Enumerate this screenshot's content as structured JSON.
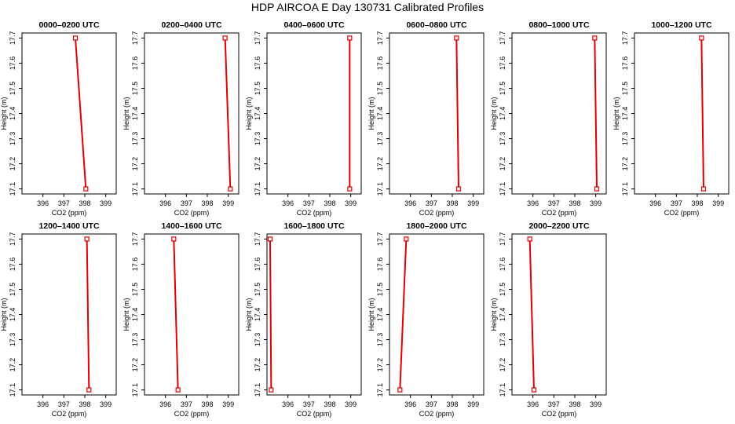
{
  "title": "HDP AIRCOA E  Day 130731  Calibrated Profiles",
  "colors": {
    "profile": "#e00000",
    "axis": "#000000",
    "background": "#ffffff"
  },
  "chart_data": [
    {
      "type": "line",
      "title": "0000–0200 UTC",
      "xlabel": "CO2 (ppm)",
      "ylabel": "Height (m)",
      "xlim": [
        395.0,
        399.5
      ],
      "ylim": [
        17.08,
        17.72
      ],
      "xticks": [
        396,
        397,
        398,
        399
      ],
      "yticks": [
        17.1,
        17.2,
        17.3,
        17.4,
        17.5,
        17.6,
        17.7
      ],
      "series": [
        {
          "points": [
            {
              "x": 398.05,
              "y": 17.1
            },
            {
              "x": 397.55,
              "y": 17.7
            }
          ]
        }
      ]
    },
    {
      "type": "line",
      "title": "0200–0400 UTC",
      "xlabel": "CO2 (ppm)",
      "ylabel": "Height (m)",
      "xlim": [
        395.0,
        399.5
      ],
      "ylim": [
        17.08,
        17.72
      ],
      "xticks": [
        396,
        397,
        398,
        399
      ],
      "yticks": [
        17.1,
        17.2,
        17.3,
        17.4,
        17.5,
        17.6,
        17.7
      ],
      "series": [
        {
          "points": [
            {
              "x": 399.1,
              "y": 17.1
            },
            {
              "x": 398.85,
              "y": 17.7
            }
          ]
        }
      ]
    },
    {
      "type": "line",
      "title": "0400–0600 UTC",
      "xlabel": "CO2 (ppm)",
      "ylabel": "Height (m)",
      "xlim": [
        395.0,
        399.5
      ],
      "ylim": [
        17.08,
        17.72
      ],
      "xticks": [
        396,
        397,
        398,
        399
      ],
      "yticks": [
        17.1,
        17.2,
        17.3,
        17.4,
        17.5,
        17.6,
        17.7
      ],
      "series": [
        {
          "points": [
            {
              "x": 398.95,
              "y": 17.1
            },
            {
              "x": 398.95,
              "y": 17.7
            }
          ]
        }
      ]
    },
    {
      "type": "line",
      "title": "0600–0800 UTC",
      "xlabel": "CO2 (ppm)",
      "ylabel": "Height (m)",
      "xlim": [
        395.0,
        399.5
      ],
      "ylim": [
        17.08,
        17.72
      ],
      "xticks": [
        396,
        397,
        398,
        399
      ],
      "yticks": [
        17.1,
        17.2,
        17.3,
        17.4,
        17.5,
        17.6,
        17.7
      ],
      "series": [
        {
          "points": [
            {
              "x": 398.3,
              "y": 17.1
            },
            {
              "x": 398.2,
              "y": 17.7
            }
          ]
        }
      ]
    },
    {
      "type": "line",
      "title": "0800–1000 UTC",
      "xlabel": "CO2 (ppm)",
      "ylabel": "Height (m)",
      "xlim": [
        395.0,
        399.5
      ],
      "ylim": [
        17.08,
        17.72
      ],
      "xticks": [
        396,
        397,
        398,
        399
      ],
      "yticks": [
        17.1,
        17.2,
        17.3,
        17.4,
        17.5,
        17.6,
        17.7
      ],
      "series": [
        {
          "points": [
            {
              "x": 399.05,
              "y": 17.1
            },
            {
              "x": 398.95,
              "y": 17.7
            }
          ]
        }
      ]
    },
    {
      "type": "line",
      "title": "1000–1200 UTC",
      "xlabel": "CO2 (ppm)",
      "ylabel": "Height (m)",
      "xlim": [
        395.0,
        399.5
      ],
      "ylim": [
        17.08,
        17.72
      ],
      "xticks": [
        396,
        397,
        398,
        399
      ],
      "yticks": [
        17.1,
        17.2,
        17.3,
        17.4,
        17.5,
        17.6,
        17.7
      ],
      "series": [
        {
          "points": [
            {
              "x": 398.3,
              "y": 17.1
            },
            {
              "x": 398.2,
              "y": 17.7
            }
          ]
        }
      ]
    },
    {
      "type": "line",
      "title": "1200–1400 UTC",
      "xlabel": "CO2 (ppm)",
      "ylabel": "Height (m)",
      "xlim": [
        395.0,
        399.5
      ],
      "ylim": [
        17.08,
        17.72
      ],
      "xticks": [
        396,
        397,
        398,
        399
      ],
      "yticks": [
        17.1,
        17.2,
        17.3,
        17.4,
        17.5,
        17.6,
        17.7
      ],
      "series": [
        {
          "points": [
            {
              "x": 398.2,
              "y": 17.1
            },
            {
              "x": 398.1,
              "y": 17.7
            }
          ]
        }
      ]
    },
    {
      "type": "line",
      "title": "1400–1600 UTC",
      "xlabel": "CO2 (ppm)",
      "ylabel": "Height (m)",
      "xlim": [
        395.0,
        399.5
      ],
      "ylim": [
        17.08,
        17.72
      ],
      "xticks": [
        396,
        397,
        398,
        399
      ],
      "yticks": [
        17.1,
        17.2,
        17.3,
        17.4,
        17.5,
        17.6,
        17.7
      ],
      "series": [
        {
          "points": [
            {
              "x": 396.6,
              "y": 17.1
            },
            {
              "x": 396.4,
              "y": 17.7
            }
          ]
        }
      ]
    },
    {
      "type": "line",
      "title": "1600–1800 UTC",
      "xlabel": "CO2 (ppm)",
      "ylabel": "Height (m)",
      "xlim": [
        395.0,
        399.5
      ],
      "ylim": [
        17.08,
        17.72
      ],
      "xticks": [
        396,
        397,
        398,
        399
      ],
      "yticks": [
        17.1,
        17.2,
        17.3,
        17.4,
        17.5,
        17.6,
        17.7
      ],
      "series": [
        {
          "points": [
            {
              "x": 395.2,
              "y": 17.1
            },
            {
              "x": 395.15,
              "y": 17.7
            }
          ]
        }
      ]
    },
    {
      "type": "line",
      "title": "1800–2000 UTC",
      "xlabel": "CO2 (ppm)",
      "ylabel": "Height (m)",
      "xlim": [
        395.0,
        399.5
      ],
      "ylim": [
        17.08,
        17.72
      ],
      "xticks": [
        396,
        397,
        398,
        399
      ],
      "yticks": [
        17.1,
        17.2,
        17.3,
        17.4,
        17.5,
        17.6,
        17.7
      ],
      "series": [
        {
          "points": [
            {
              "x": 395.5,
              "y": 17.1
            },
            {
              "x": 395.8,
              "y": 17.7
            }
          ]
        }
      ]
    },
    {
      "type": "line",
      "title": "2000–2200 UTC",
      "xlabel": "CO2 (ppm)",
      "ylabel": "Height (m)",
      "xlim": [
        395.0,
        399.5
      ],
      "ylim": [
        17.08,
        17.72
      ],
      "xticks": [
        396,
        397,
        398,
        399
      ],
      "yticks": [
        17.1,
        17.2,
        17.3,
        17.4,
        17.5,
        17.6,
        17.7
      ],
      "series": [
        {
          "points": [
            {
              "x": 396.05,
              "y": 17.1
            },
            {
              "x": 395.85,
              "y": 17.7
            }
          ]
        }
      ]
    }
  ]
}
